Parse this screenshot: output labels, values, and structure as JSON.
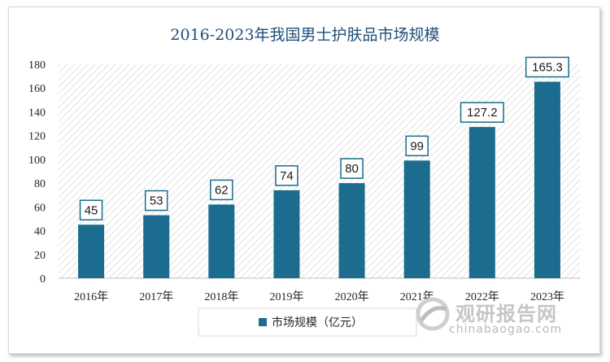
{
  "chart_data": {
    "type": "bar",
    "title": "2016-2023年我国男士护肤品市场规模",
    "categories": [
      "2016年",
      "2017年",
      "2018年",
      "2019年",
      "2020年",
      "2021年",
      "2022年",
      "2023年"
    ],
    "series": [
      {
        "name": "市场规模（亿元）",
        "values": [
          45,
          53,
          62,
          74,
          80,
          99,
          127.2,
          165.3
        ]
      }
    ],
    "data_labels": [
      "45",
      "53",
      "62",
      "74",
      "80",
      "99",
      "127.2",
      "165.3"
    ],
    "ylim": [
      0,
      180
    ],
    "yticks": [
      0,
      20,
      40,
      60,
      80,
      100,
      120,
      140,
      160,
      180
    ],
    "grid": false,
    "legend_position": "bottom",
    "colors": {
      "bar": "#1b6c8e",
      "label_border": "#1b6c8e",
      "title": "#1f4e79"
    }
  },
  "watermark": {
    "cn": "观研报告网",
    "en": "chinabaogao.com",
    "logo_icon": "globe-logo-icon"
  }
}
